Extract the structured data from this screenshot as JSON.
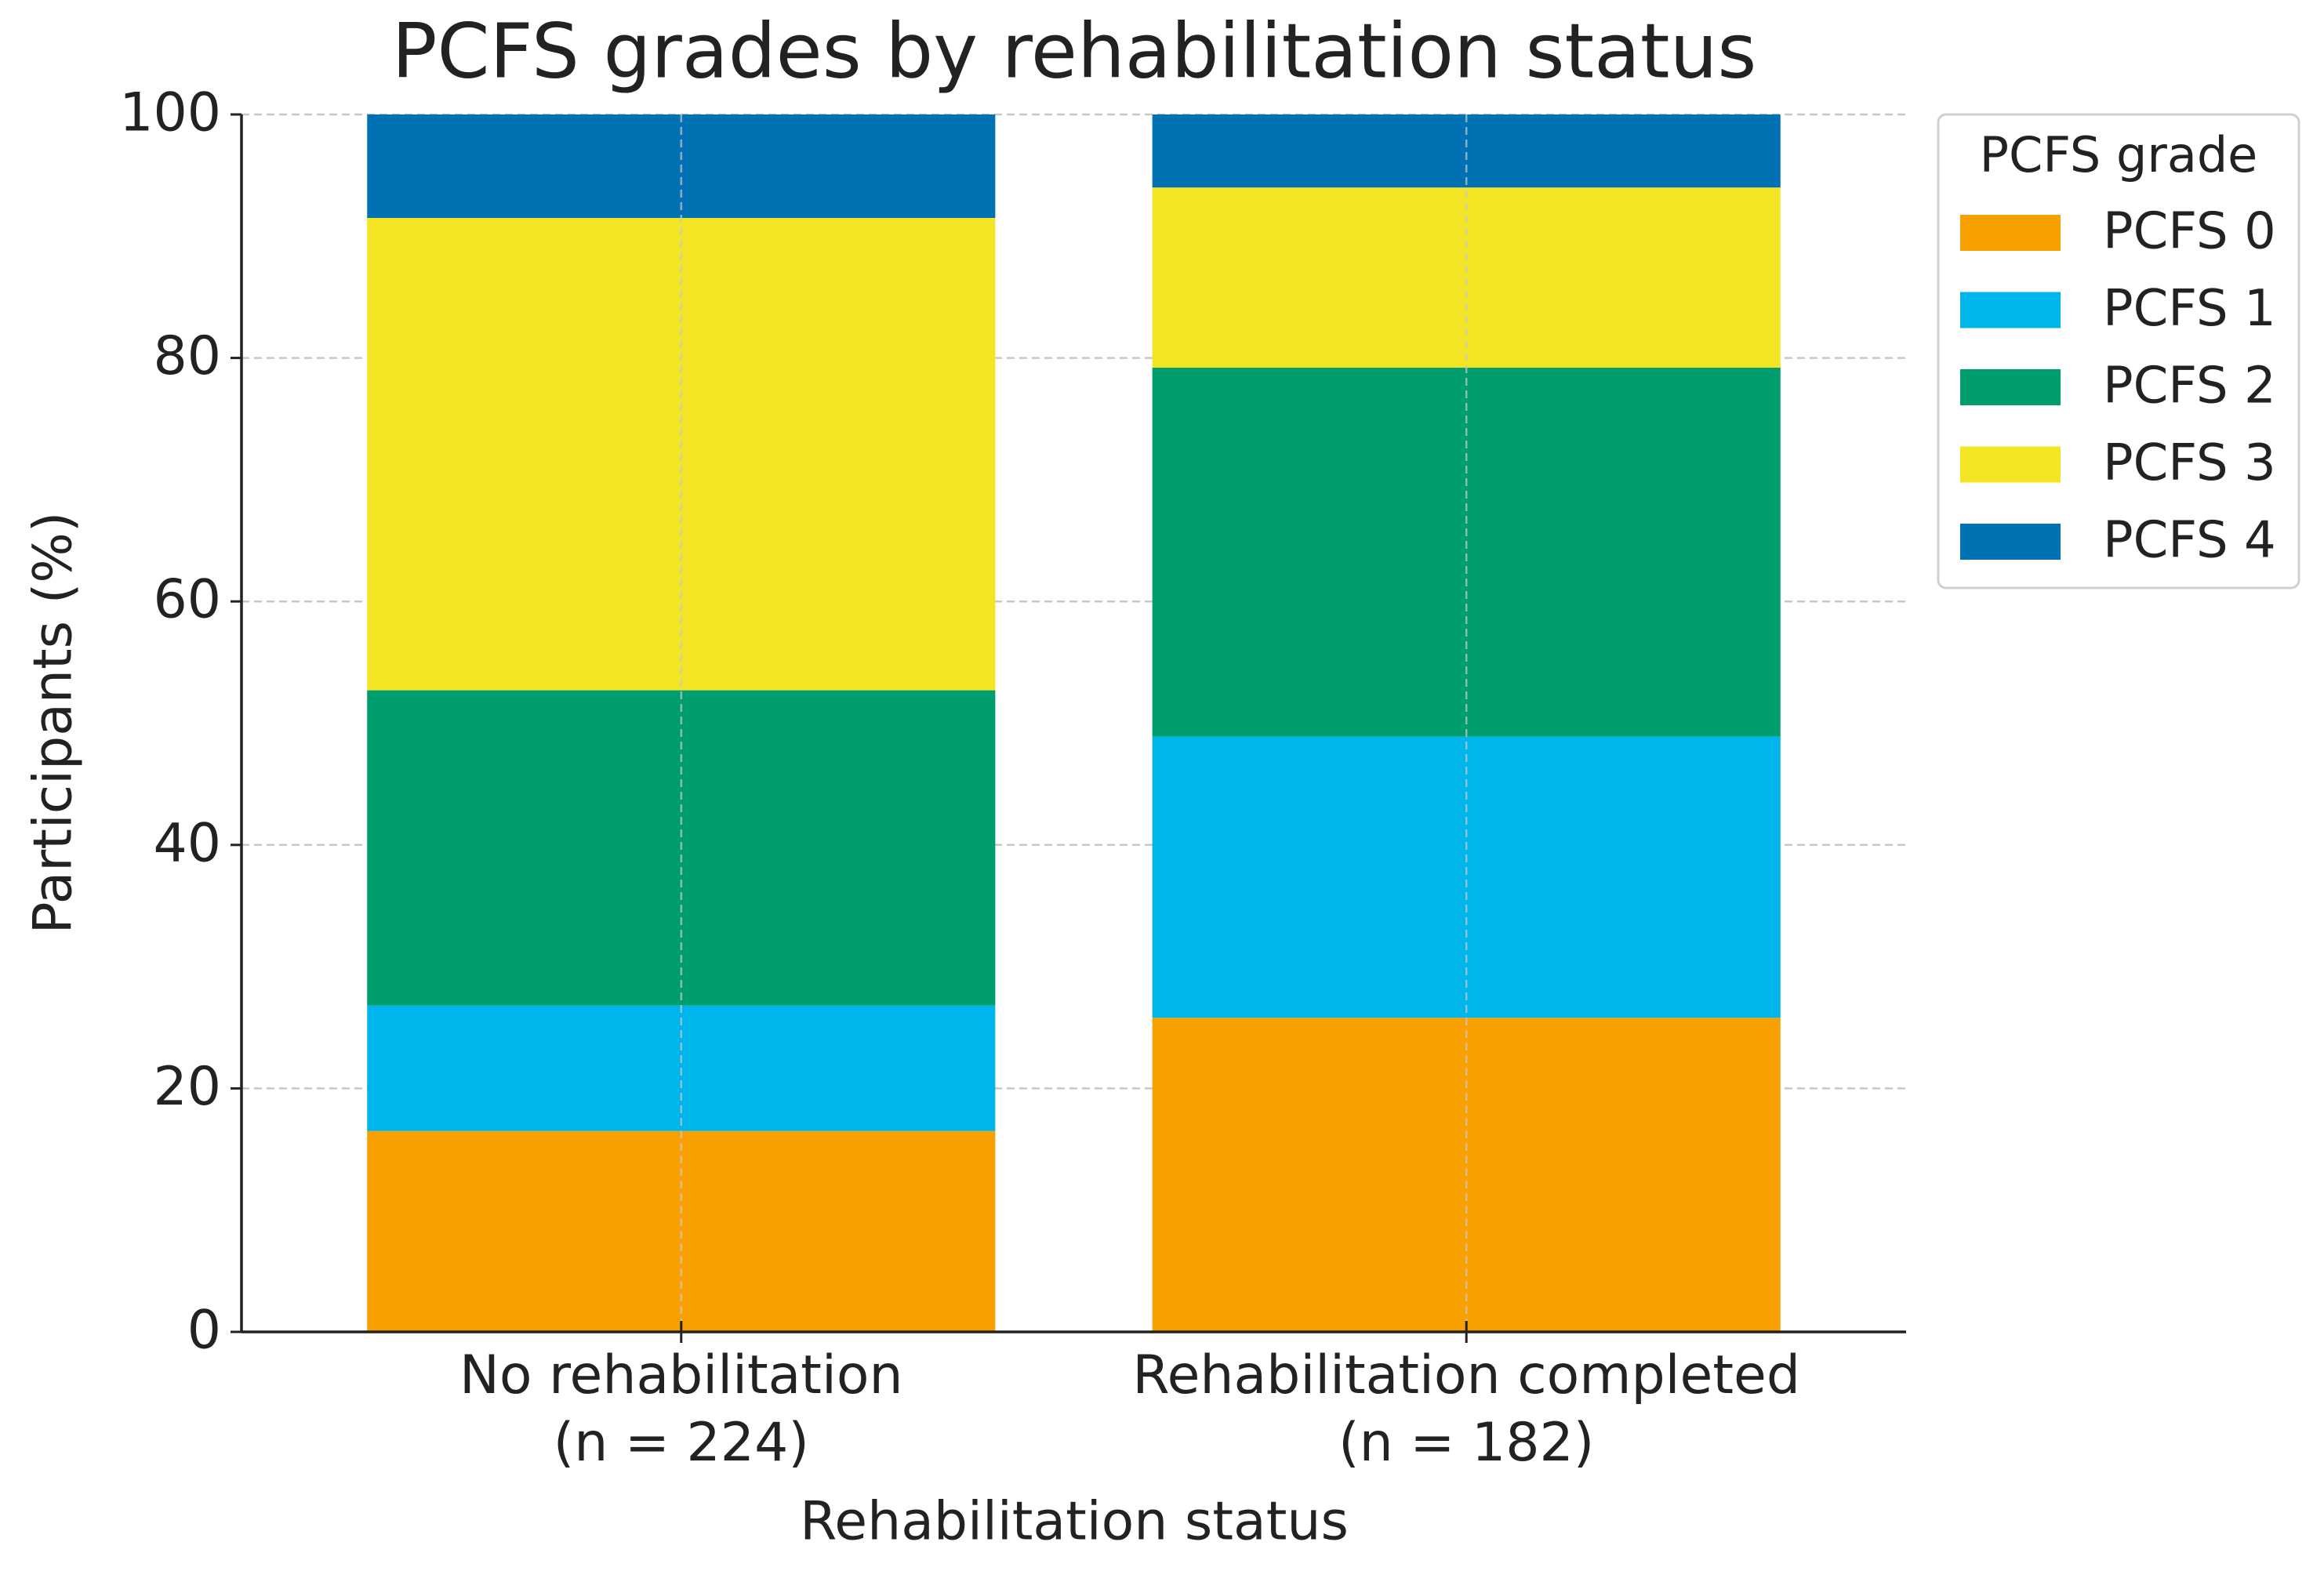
{
  "chart_data": {
    "type": "stacked_bar",
    "title": "PCFS grades by rehabilitation status",
    "xlabel": "Rehabilitation status",
    "ylabel": "Participants (%)",
    "categories": [
      "No rehabilitation\n(n = 224)",
      "Rehabilitation completed\n(n = 182)"
    ],
    "series": [
      {
        "name": "PCFS 0",
        "color": "#f8a000",
        "values": [
          16.5,
          25.8
        ]
      },
      {
        "name": "PCFS 1",
        "color": "#00b4ec",
        "values": [
          10.3,
          23.1
        ]
      },
      {
        "name": "PCFS 2",
        "color": "#009e6f",
        "values": [
          25.9,
          30.3
        ]
      },
      {
        "name": "PCFS 3",
        "color": "#f3e523",
        "values": [
          38.8,
          14.8
        ]
      },
      {
        "name": "PCFS 4",
        "color": "#0072b4",
        "values": [
          8.5,
          6.0
        ]
      }
    ],
    "legend_title": "PCFS grade",
    "legend": "right",
    "ylim": [
      0,
      100
    ],
    "yticks": [
      0,
      20,
      40,
      60,
      80,
      100
    ],
    "grid": true
  }
}
